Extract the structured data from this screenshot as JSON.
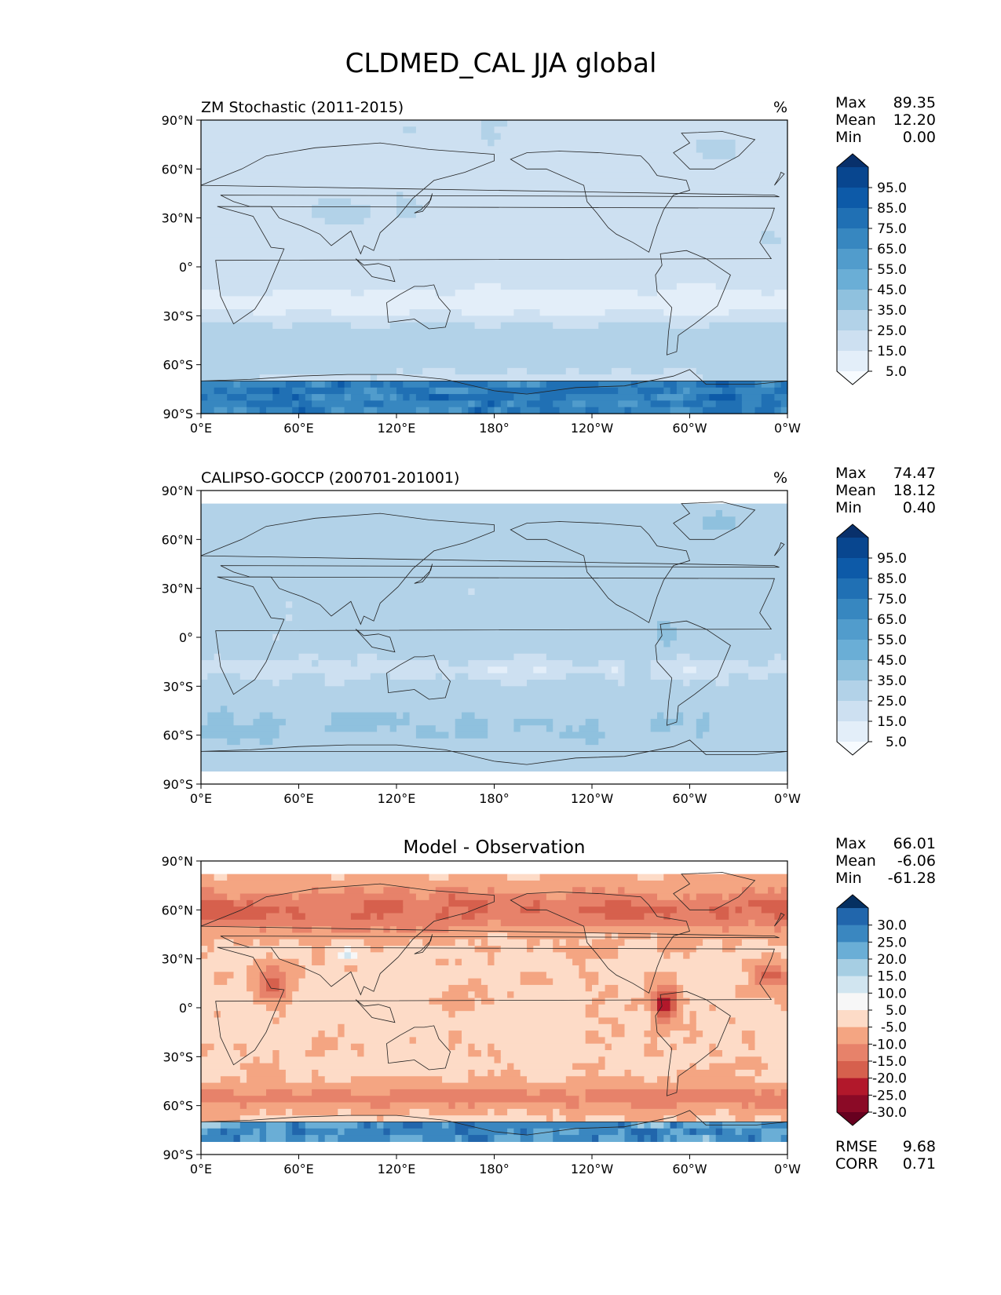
{
  "figure": {
    "title": "CLDMED_CAL JJA global"
  },
  "panels": [
    {
      "id": "model",
      "left_title": "ZM Stochastic (2011-2015)",
      "center_title": "",
      "units": "%",
      "stats": [
        {
          "label": "Max",
          "value": "89.35"
        },
        {
          "label": "Mean",
          "value": "12.20"
        },
        {
          "label": "Min",
          "value": "0.00"
        }
      ],
      "colorbar": {
        "scheme": "sequential",
        "labels": [
          "95.0",
          "85.0",
          "75.0",
          "65.0",
          "55.0",
          "45.0",
          "35.0",
          "25.0",
          "15.0",
          "5.0"
        ],
        "colors": [
          "#08306b",
          "#08468f",
          "#0d5aa8",
          "#2070b4",
          "#3787c0",
          "#519ccc",
          "#6aaed6",
          "#8fc1de",
          "#b2d2e8",
          "#cde0f1",
          "#e3eef9",
          "#f7fbff"
        ]
      },
      "data_lat_range": [
        -90,
        90
      ]
    },
    {
      "id": "obs",
      "left_title": "CALIPSO-GOCCP (200701-201001)",
      "center_title": "",
      "units": "%",
      "stats": [
        {
          "label": "Max",
          "value": "74.47"
        },
        {
          "label": "Mean",
          "value": "18.12"
        },
        {
          "label": "Min",
          "value": "0.40"
        }
      ],
      "colorbar": {
        "scheme": "sequential",
        "labels": [
          "95.0",
          "85.0",
          "75.0",
          "65.0",
          "55.0",
          "45.0",
          "35.0",
          "25.0",
          "15.0",
          "5.0"
        ],
        "colors": [
          "#08306b",
          "#08468f",
          "#0d5aa8",
          "#2070b4",
          "#3787c0",
          "#519ccc",
          "#6aaed6",
          "#8fc1de",
          "#b2d2e8",
          "#cde0f1",
          "#e3eef9",
          "#f7fbff"
        ]
      },
      "data_lat_range": [
        -82,
        82
      ]
    },
    {
      "id": "diff",
      "left_title": "",
      "center_title": "Model - Observation",
      "units": "",
      "stats": [
        {
          "label": "Max",
          "value": "66.01"
        },
        {
          "label": "Mean",
          "value": "-6.06"
        },
        {
          "label": "Min",
          "value": "-61.28"
        }
      ],
      "colorbar": {
        "scheme": "diverging",
        "labels": [
          "30.0",
          "25.0",
          "20.0",
          "15.0",
          "10.0",
          "5.0",
          "-5.0",
          "-10.0",
          "-15.0",
          "-20.0",
          "-25.0",
          "-30.0"
        ],
        "colors": [
          "#053061",
          "#2166ac",
          "#3a87c0",
          "#6aaed6",
          "#a6cee3",
          "#d1e5f0",
          "#f7f7f7",
          "#fddbc7",
          "#f4a582",
          "#e7826a",
          "#d6604d",
          "#b2182b",
          "#8b0a26",
          "#67001f"
        ]
      },
      "metrics": [
        {
          "label": "RMSE",
          "value": "9.68"
        },
        {
          "label": "CORR",
          "value": "0.71"
        }
      ],
      "data_lat_range": [
        -82,
        82
      ]
    }
  ],
  "axes": {
    "lat_ticks": [
      "90°N",
      "60°N",
      "30°N",
      "0°",
      "30°S",
      "60°S",
      "90°S"
    ],
    "lon_ticks": [
      "0°E",
      "60°E",
      "120°E",
      "180°",
      "120°W",
      "60°W",
      "0°W"
    ]
  }
}
